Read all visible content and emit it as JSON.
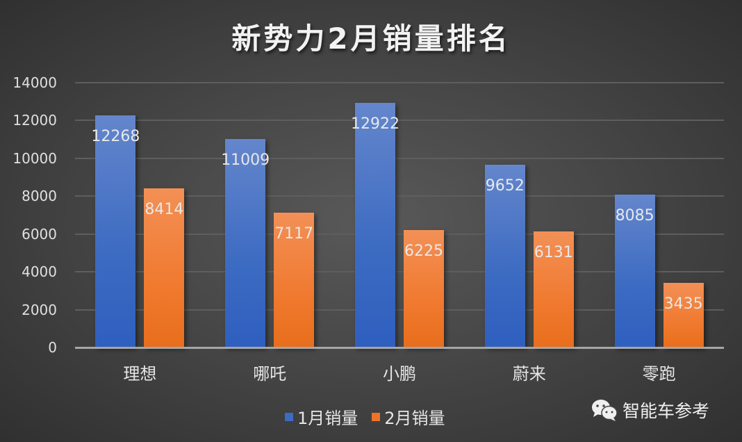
{
  "title": "新势力2月销量排名",
  "chart_data": {
    "type": "bar",
    "title": "新势力2月销量排名",
    "xlabel": "",
    "ylabel": "",
    "ylim": [
      0,
      14000
    ],
    "yticks": [
      0,
      2000,
      4000,
      6000,
      8000,
      10000,
      12000,
      14000
    ],
    "grid": true,
    "legend_position": "bottom",
    "categories": [
      "理想",
      "哪吒",
      "小鹏",
      "蔚来",
      "零跑"
    ],
    "series": [
      {
        "name": "1月销量",
        "color": "#4472c4",
        "values": [
          12268,
          11009,
          12922,
          9652,
          8085
        ]
      },
      {
        "name": "2月销量",
        "color": "#ed7d31",
        "values": [
          8414,
          7117,
          6225,
          6131,
          3435
        ]
      }
    ],
    "data_labels": true
  },
  "yaxis": {
    "ticks": [
      "0",
      "2000",
      "4000",
      "6000",
      "8000",
      "10000",
      "12000",
      "14000"
    ]
  },
  "legend": {
    "items": [
      {
        "label": "1月销量",
        "color": "#4472c4"
      },
      {
        "label": "2月销量",
        "color": "#ed7d31"
      }
    ]
  },
  "watermark": {
    "icon": "wechat-icon",
    "text": "智能车参考"
  }
}
